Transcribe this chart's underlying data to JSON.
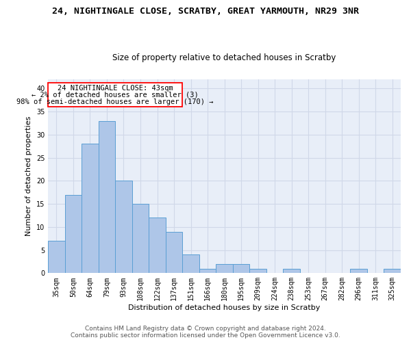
{
  "title_line1": "24, NIGHTINGALE CLOSE, SCRATBY, GREAT YARMOUTH, NR29 3NR",
  "title_line2": "Size of property relative to detached houses in Scratby",
  "xlabel": "Distribution of detached houses by size in Scratby",
  "ylabel": "Number of detached properties",
  "categories": [
    "35sqm",
    "50sqm",
    "64sqm",
    "79sqm",
    "93sqm",
    "108sqm",
    "122sqm",
    "137sqm",
    "151sqm",
    "166sqm",
    "180sqm",
    "195sqm",
    "209sqm",
    "224sqm",
    "238sqm",
    "253sqm",
    "267sqm",
    "282sqm",
    "296sqm",
    "311sqm",
    "325sqm"
  ],
  "values": [
    7,
    17,
    28,
    33,
    20,
    15,
    12,
    9,
    4,
    1,
    2,
    2,
    1,
    0,
    1,
    0,
    0,
    0,
    1,
    0,
    1
  ],
  "bar_color": "#aec6e8",
  "bar_edge_color": "#5a9fd4",
  "annotation_line1": "24 NIGHTINGALE CLOSE: 43sqm",
  "annotation_line2": "← 2% of detached houses are smaller (3)",
  "annotation_line3": "98% of semi-detached houses are larger (170) →",
  "ylim": [
    0,
    42
  ],
  "yticks": [
    0,
    5,
    10,
    15,
    20,
    25,
    30,
    35,
    40
  ],
  "grid_color": "#d0d8e8",
  "background_color": "#e8eef8",
  "footer_line1": "Contains HM Land Registry data © Crown copyright and database right 2024.",
  "footer_line2": "Contains public sector information licensed under the Open Government Licence v3.0.",
  "title1_fontsize": 9.5,
  "title2_fontsize": 8.5,
  "xlabel_fontsize": 8,
  "ylabel_fontsize": 8,
  "tick_fontsize": 7,
  "annotation_fontsize": 7.5,
  "footer_fontsize": 6.5
}
